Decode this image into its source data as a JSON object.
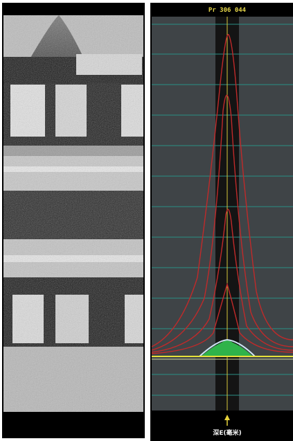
{
  "plot": {
    "header": "Pr 306 044",
    "footer": "深E(毫米)"
  }
}
